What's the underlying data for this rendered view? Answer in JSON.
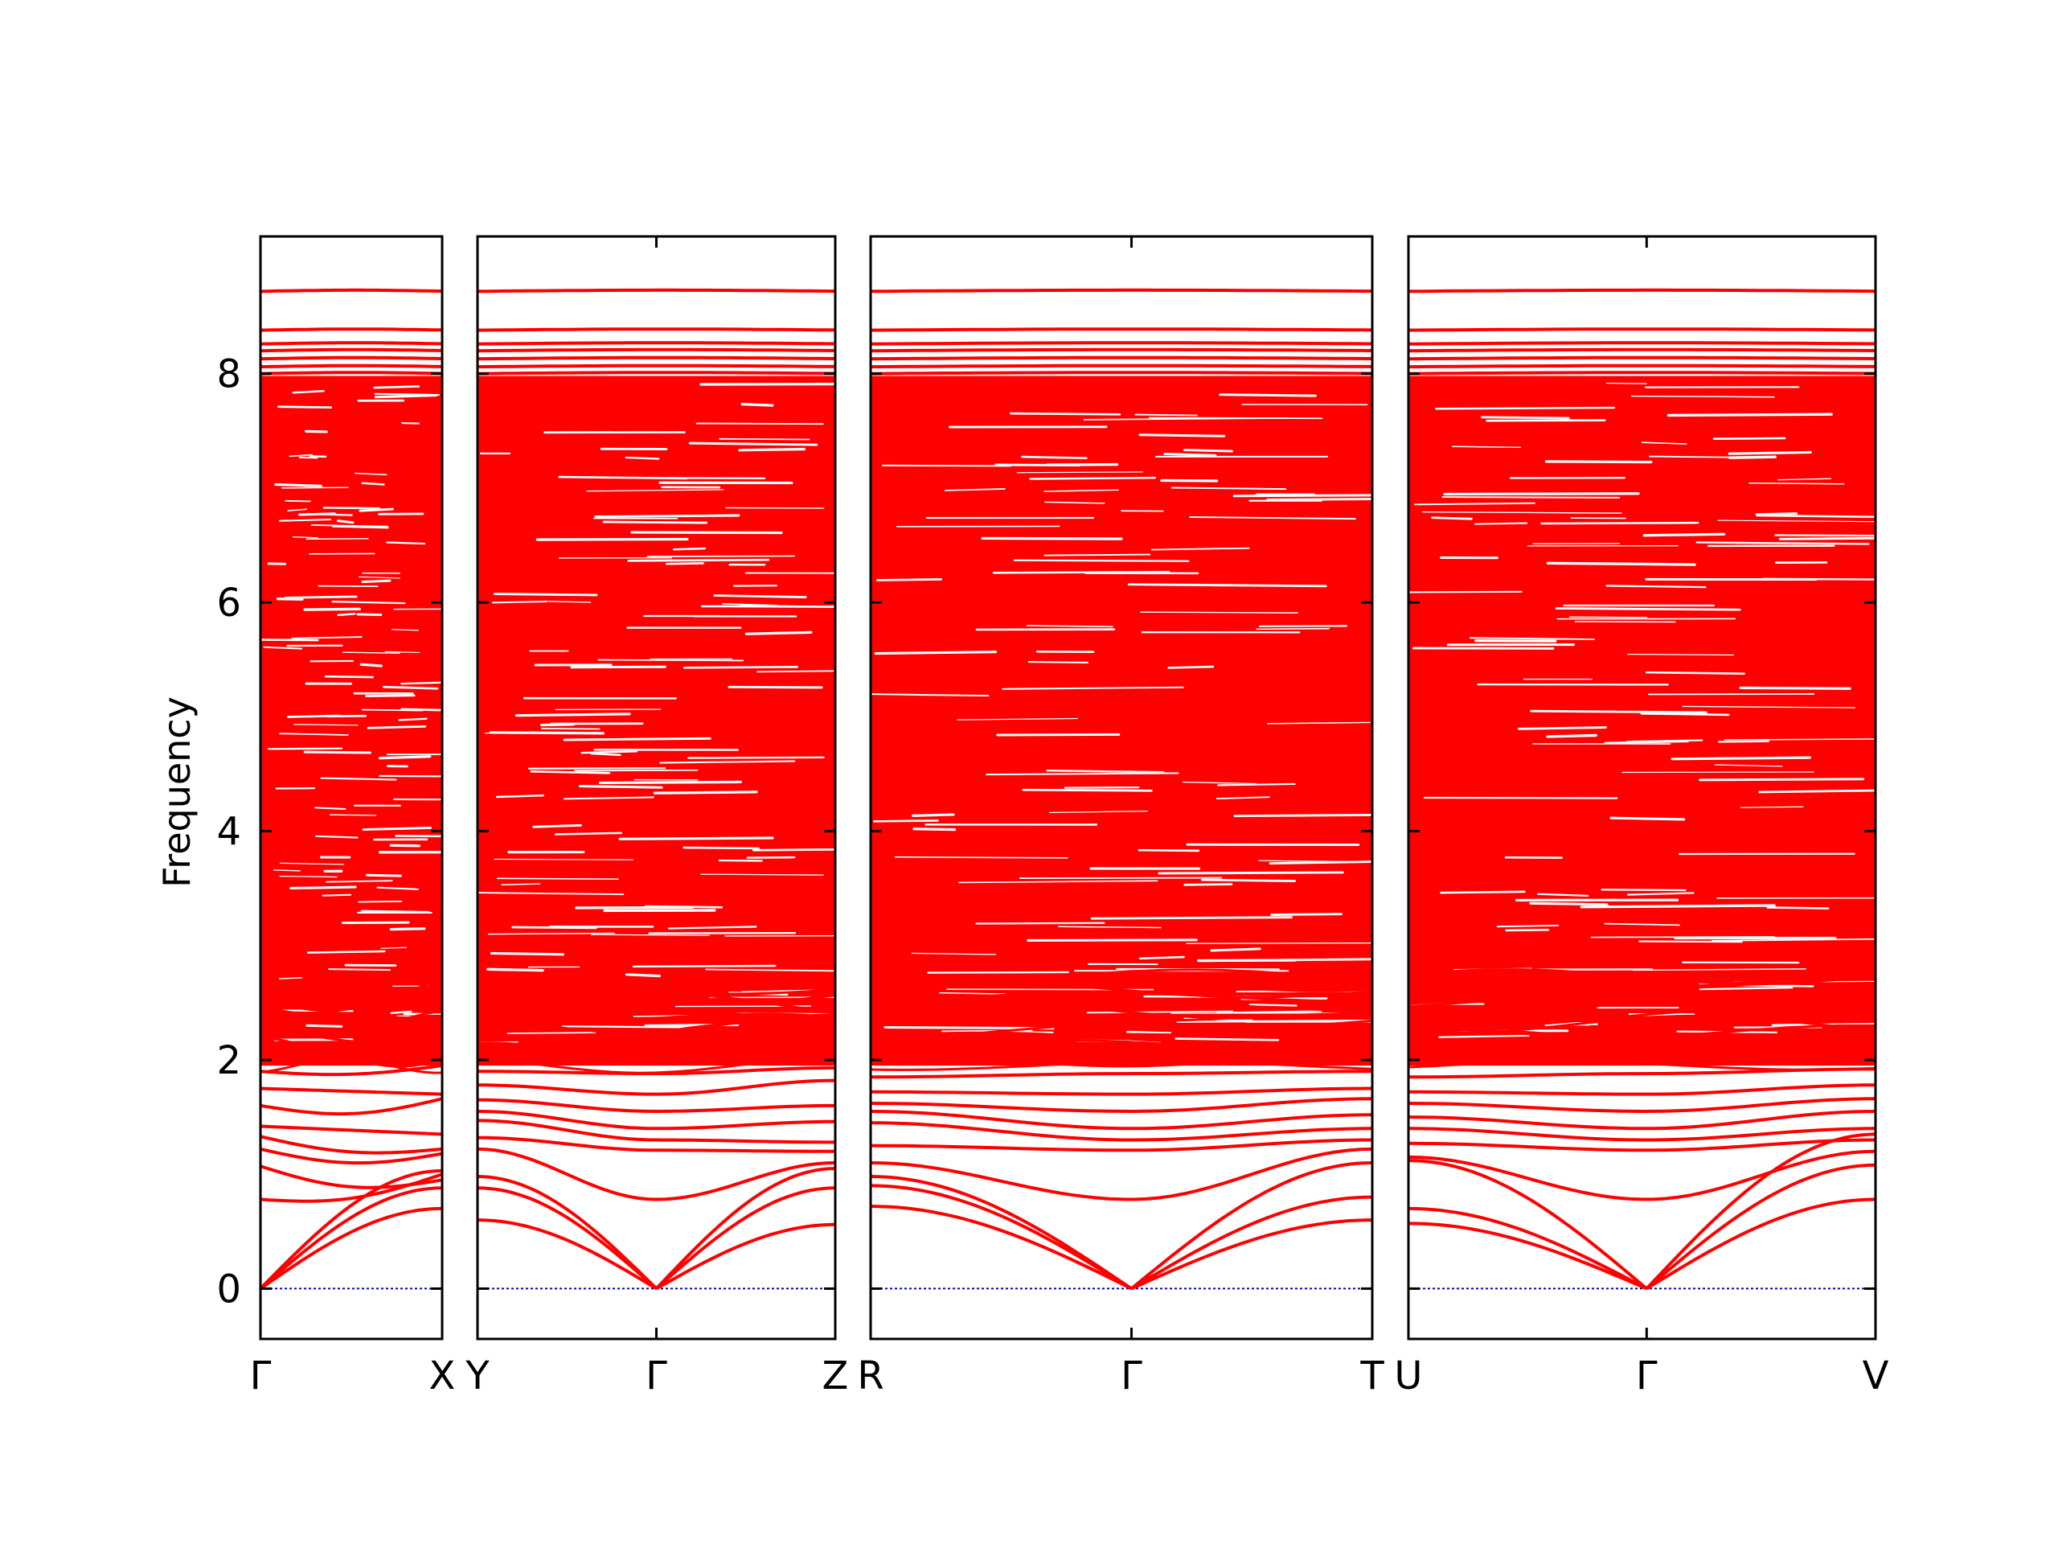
{
  "chart_data": {
    "type": "line",
    "ylabel": "Frequency",
    "ylim": [
      -0.44,
      9.2
    ],
    "yticks": [
      0,
      2,
      4,
      6,
      8
    ],
    "grid": false,
    "colors": {
      "bands": "#ff0000",
      "zero_line": "#0000cc",
      "axes": "#000000"
    },
    "panels": [
      {
        "id": "gamma-x",
        "labels": [
          "Γ",
          "X"
        ],
        "gamma_position": 0,
        "acoustic_end": [
          0.7,
          0.88,
          1.03
        ],
        "low_optical": [
          {
            "a": 0.78,
            "b": 1.0,
            "dip": 0.1
          },
          {
            "a": 1.07,
            "b": 0.95,
            "dip": 0.12
          },
          {
            "a": 1.22,
            "b": 1.18,
            "dip": 0.1
          },
          {
            "a": 1.33,
            "b": 1.22,
            "dip": 0.08
          },
          {
            "a": 1.42,
            "b": 1.35,
            "dip": 0.0
          },
          {
            "a": 1.6,
            "b": 1.66,
            "dip": 0.1
          },
          {
            "a": 1.75,
            "b": 1.7,
            "dip": 0.0
          },
          {
            "a": 1.9,
            "b": 1.95,
            "dip": 0.05
          }
        ]
      },
      {
        "id": "y-gamma-z",
        "labels": [
          "Y",
          "Γ",
          "Z"
        ],
        "gamma_position": 0.5,
        "acoustic_end_left": [
          0.6,
          0.88,
          0.98
        ],
        "acoustic_end_right": [
          0.56,
          0.88,
          1.05
        ],
        "low_optical": [
          {
            "a": 1.22,
            "b": 0.78,
            "c": 1.1
          },
          {
            "a": 1.32,
            "b": 1.21,
            "c": 1.2
          },
          {
            "a": 1.47,
            "b": 1.3,
            "c": 1.28
          },
          {
            "a": 1.55,
            "b": 1.4,
            "c": 1.46
          },
          {
            "a": 1.65,
            "b": 1.55,
            "c": 1.6
          },
          {
            "a": 1.78,
            "b": 1.7,
            "c": 1.82
          },
          {
            "a": 1.9,
            "b": 1.88,
            "c": 1.93
          }
        ]
      },
      {
        "id": "r-gamma-t",
        "labels": [
          "R",
          "Γ",
          "T"
        ],
        "gamma_position": 0.52,
        "acoustic_end_left": [
          0.72,
          0.9,
          0.98
        ],
        "acoustic_end_right": [
          0.6,
          0.8,
          1.1
        ],
        "low_optical": [
          {
            "a": 1.1,
            "b": 0.78,
            "c": 1.22
          },
          {
            "a": 1.25,
            "b": 1.21,
            "c": 1.3
          },
          {
            "a": 1.45,
            "b": 1.3,
            "c": 1.4
          },
          {
            "a": 1.55,
            "b": 1.4,
            "c": 1.52
          },
          {
            "a": 1.62,
            "b": 1.55,
            "c": 1.66
          },
          {
            "a": 1.72,
            "b": 1.7,
            "c": 1.75
          },
          {
            "a": 1.85,
            "b": 1.88,
            "c": 1.9
          }
        ]
      },
      {
        "id": "u-gamma-v",
        "labels": [
          "U",
          "Γ",
          "V"
        ],
        "gamma_position": 0.51,
        "acoustic_end_left": [
          0.57,
          0.7,
          1.12
        ],
        "acoustic_end_right": [
          0.78,
          1.08,
          1.35
        ],
        "low_optical": [
          {
            "a": 1.15,
            "b": 0.78,
            "c": 1.2
          },
          {
            "a": 1.27,
            "b": 1.21,
            "c": 1.3
          },
          {
            "a": 1.4,
            "b": 1.3,
            "c": 1.4
          },
          {
            "a": 1.5,
            "b": 1.4,
            "c": 1.55
          },
          {
            "a": 1.62,
            "b": 1.55,
            "c": 1.66
          },
          {
            "a": 1.72,
            "b": 1.7,
            "c": 1.78
          },
          {
            "a": 1.85,
            "b": 1.88,
            "c": 1.92
          }
        ]
      }
    ],
    "flat_bands": [
      8.72,
      8.38,
      8.26,
      8.2,
      8.13,
      8.06,
      8.0
    ],
    "dense_band_region": [
      1.95,
      7.98
    ]
  }
}
